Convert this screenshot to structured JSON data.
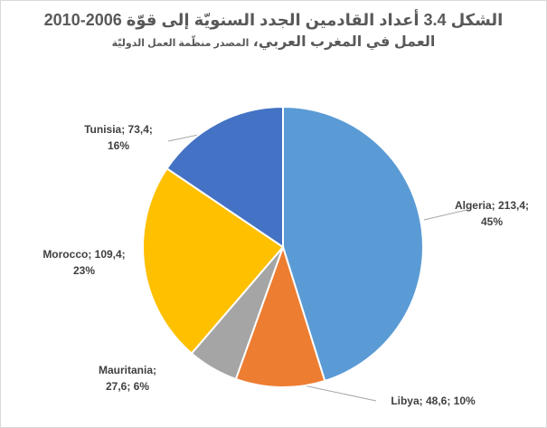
{
  "chart_data": {
    "type": "pie",
    "title": [
      "الشكل 3.4 أعداد القادمين الجدد السنويّة إلى قوّة 2006-2010",
      "العمل في المغرب العربي،"
    ],
    "subtitle": "المصدر منظّمة العمل الدوليّة",
    "values": [
      213.4,
      48.6,
      27.6,
      109.4,
      73.4
    ],
    "value_labels": [
      [
        "Algeria; 213,4;",
        "45%"
      ],
      [
        "Libya; 48,6; 10%"
      ],
      [
        "Mauritania;",
        "27,6; 6%"
      ],
      [
        "Morocco; 109,4;",
        "23%"
      ],
      [
        "Tunisia; 73,4;",
        "16%"
      ]
    ],
    "colors": [
      "#5b9bd5",
      "#ed7d31",
      "#a5a5a5",
      "#ffc000",
      "#4472c4"
    ]
  }
}
